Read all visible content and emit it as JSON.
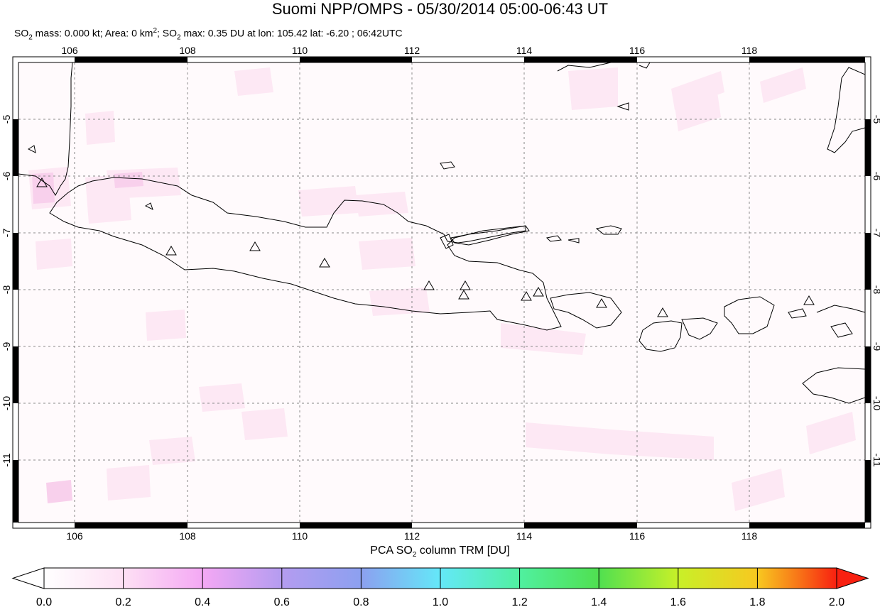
{
  "title": "Suomi NPP/OMPS - 05/30/2014 05:00-06:43 UT",
  "subtitle": {
    "mass_label": "SO",
    "mass_sub": "2",
    "mass_text": " mass: 0.000 kt; Area: 0 km",
    "area_sup": "2",
    "max_label": "; SO",
    "max_sub": "2",
    "max_text": " max: 0.35 DU at lon: 105.42 lat: -6.20 ; 06:42UTC"
  },
  "map": {
    "lon_ticks": [
      "106",
      "108",
      "110",
      "112",
      "114",
      "116",
      "118"
    ],
    "lat_ticks": [
      "-5",
      "-6",
      "-7",
      "-8",
      "-9",
      "-10",
      "-11"
    ],
    "lon_range": [
      104.9,
      120.0
    ],
    "lat_range": [
      -12.1,
      -4.0
    ],
    "volcano_count_shown": 14
  },
  "colorbar": {
    "title_pre": "PCA SO",
    "title_sub": "2",
    "title_post": " column TRM [DU]",
    "tick_labels": [
      "0.0",
      "0.2",
      "0.4",
      "0.6",
      "0.8",
      "1.0",
      "1.2",
      "1.4",
      "1.6",
      "1.8",
      "2.0"
    ],
    "colors": [
      "#ffffff",
      "#fde0f4",
      "#f4a8f4",
      "#b49cf0",
      "#8c9cf0",
      "#64d8f8",
      "#50f0a0",
      "#50e050",
      "#c8f028",
      "#f8c820",
      "#f87818",
      "#f82010"
    ]
  }
}
